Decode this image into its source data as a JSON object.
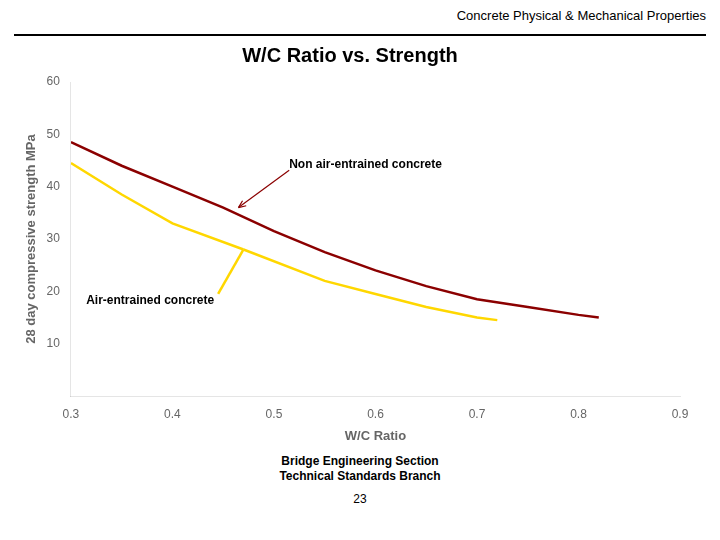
{
  "chart_data": {
    "type": "line",
    "header": "Concrete Physical & Mechanical Properties",
    "title": "W/C Ratio vs. Strength",
    "xlabel": "W/C Ratio",
    "ylabel": "28 day compressive strength MPa",
    "xlim": [
      0.3,
      0.9
    ],
    "ylim": [
      0,
      60
    ],
    "xticks": [
      0.3,
      0.4,
      0.5,
      0.6,
      0.7,
      0.8,
      0.9
    ],
    "yticks": [
      10,
      20,
      30,
      40,
      50,
      60
    ],
    "grid": false,
    "series": [
      {
        "color": "#8B0000",
        "x": [
          0.3,
          0.35,
          0.4,
          0.45,
          0.5,
          0.55,
          0.6,
          0.65,
          0.7,
          0.75,
          0.8,
          0.82
        ],
        "values": [
          48.5,
          44.0,
          40.0,
          36.0,
          31.5,
          27.5,
          24.0,
          21.0,
          18.5,
          17.0,
          15.5,
          15.0
        ]
      },
      {
        "color": "#FFD700",
        "x": [
          0.3,
          0.35,
          0.4,
          0.47
        ],
        "values": [
          44.5,
          38.5,
          33.0,
          28.0
        ]
      },
      {
        "color": "#FFD700",
        "x": [
          0.47,
          0.55,
          0.6,
          0.65,
          0.7,
          0.72
        ],
        "values": [
          28.0,
          22.0,
          19.5,
          17.0,
          15.0,
          14.5
        ]
      },
      {
        "color": "#FFD700",
        "x": [
          0.47,
          0.445
        ],
        "values": [
          28.0,
          19.5
        ]
      }
    ],
    "annotations": [
      {
        "text": "Non air-entrained concrete",
        "x": 0.515,
        "y": 43.5,
        "arrow_to": [
          0.465,
          36.0
        ],
        "color": "#8B0000"
      },
      {
        "text": "Air-entrained concrete",
        "x": 0.315,
        "y": 17.5
      }
    ],
    "footer": "Bridge Engineering Section\nTechnical Standards Branch",
    "page_number": "23"
  }
}
